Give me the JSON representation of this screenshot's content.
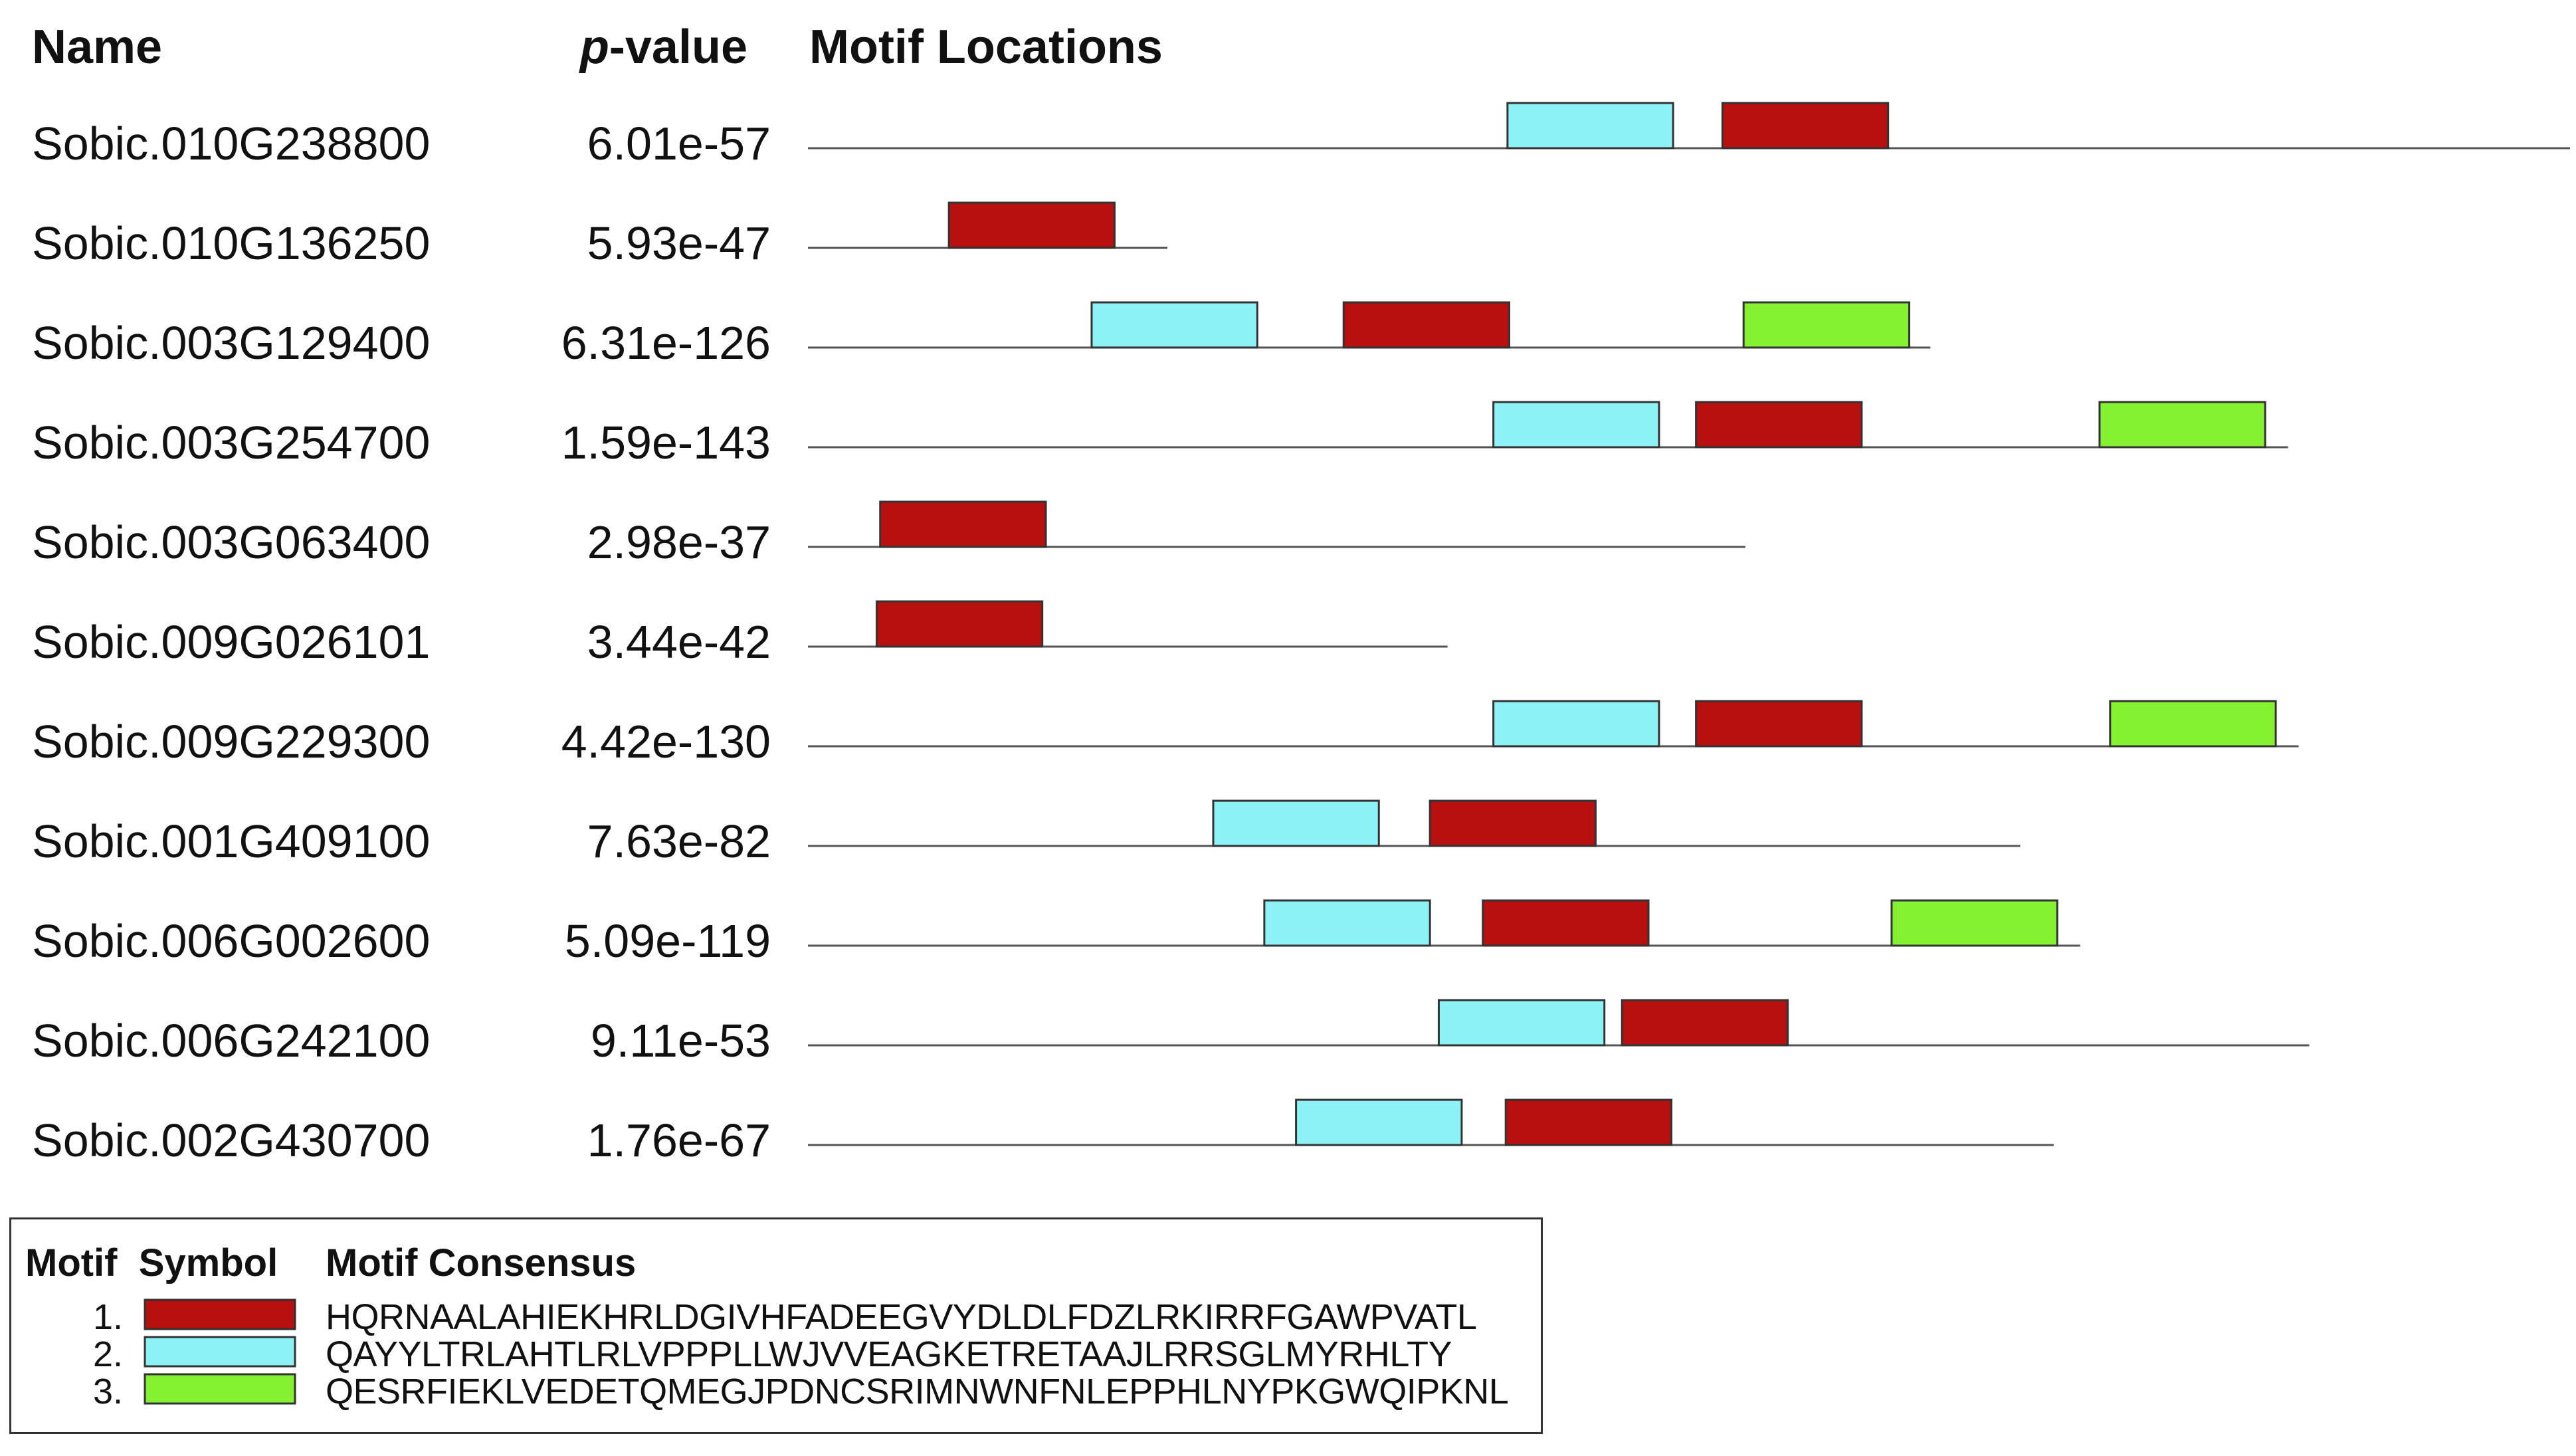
{
  "headers": {
    "name": "Name",
    "pvalue_italic": "p",
    "pvalue_rest": "-value",
    "locations": "Motif Locations"
  },
  "colors": {
    "motif1": "#b80f0f",
    "motif2": "#8cf2f5",
    "motif3": "#84f230",
    "line": "#555555",
    "text": "#111111"
  },
  "chart_data": {
    "type": "motif-locations",
    "rows": [
      {
        "name": "Sobic.010G238800",
        "pvalue": "6.01e-57",
        "length": 1.0,
        "motifs": [
          {
            "id": 2,
            "start": 0.397
          },
          {
            "id": 1,
            "start": 0.519
          }
        ]
      },
      {
        "name": "Sobic.010G136250",
        "pvalue": "5.93e-47",
        "length": 0.204,
        "motifs": [
          {
            "id": 1,
            "start": 0.08
          }
        ]
      },
      {
        "name": "Sobic.003G129400",
        "pvalue": "6.31e-126",
        "length": 0.637,
        "motifs": [
          {
            "id": 2,
            "start": 0.161
          },
          {
            "id": 1,
            "start": 0.304
          },
          {
            "id": 3,
            "start": 0.531
          }
        ]
      },
      {
        "name": "Sobic.003G254700",
        "pvalue": "1.59e-143",
        "length": 0.84,
        "motifs": [
          {
            "id": 2,
            "start": 0.389
          },
          {
            "id": 1,
            "start": 0.504
          },
          {
            "id": 3,
            "start": 0.733
          }
        ]
      },
      {
        "name": "Sobic.003G063400",
        "pvalue": "2.98e-37",
        "length": 0.532,
        "motifs": [
          {
            "id": 1,
            "start": 0.041
          }
        ]
      },
      {
        "name": "Sobic.009G026101",
        "pvalue": "3.44e-42",
        "length": 0.363,
        "motifs": [
          {
            "id": 1,
            "start": 0.039
          }
        ]
      },
      {
        "name": "Sobic.009G229300",
        "pvalue": "4.42e-130",
        "length": 0.846,
        "motifs": [
          {
            "id": 2,
            "start": 0.389
          },
          {
            "id": 1,
            "start": 0.504
          },
          {
            "id": 3,
            "start": 0.739
          }
        ]
      },
      {
        "name": "Sobic.001G409100",
        "pvalue": "7.63e-82",
        "length": 0.688,
        "motifs": [
          {
            "id": 2,
            "start": 0.23
          },
          {
            "id": 1,
            "start": 0.353
          }
        ]
      },
      {
        "name": "Sobic.006G002600",
        "pvalue": "5.09e-119",
        "length": 0.722,
        "motifs": [
          {
            "id": 2,
            "start": 0.259
          },
          {
            "id": 1,
            "start": 0.383
          },
          {
            "id": 3,
            "start": 0.615
          }
        ]
      },
      {
        "name": "Sobic.006G242100",
        "pvalue": "9.11e-53",
        "length": 0.852,
        "motifs": [
          {
            "id": 2,
            "start": 0.358
          },
          {
            "id": 1,
            "start": 0.462
          }
        ]
      },
      {
        "name": "Sobic.002G430700",
        "pvalue": "1.76e-67",
        "length": 0.707,
        "motifs": [
          {
            "id": 2,
            "start": 0.277
          },
          {
            "id": 1,
            "start": 0.396
          }
        ]
      }
    ],
    "motif_width": 0.094
  },
  "legend": {
    "header_symbol": "Motif  Symbol",
    "header_consensus": "Motif Consensus",
    "items": [
      {
        "number": "1.",
        "motif": 1,
        "consensus": "HQRNAALAHIEKHRLDGIVHFADEEGVYDLDLFDZLRKIRRFGAWPVATL"
      },
      {
        "number": "2.",
        "motif": 2,
        "consensus": "QAYYLTRLAHTLRLVPPPLLWJVVEAGKETRETAAJLRRSGLMYRHLTY"
      },
      {
        "number": "3.",
        "motif": 3,
        "consensus": "QESRFIEKLVEDETQMEGJPDNCSRIMNWNFNLEPPHLNYPKGWQIPKNL"
      }
    ]
  }
}
